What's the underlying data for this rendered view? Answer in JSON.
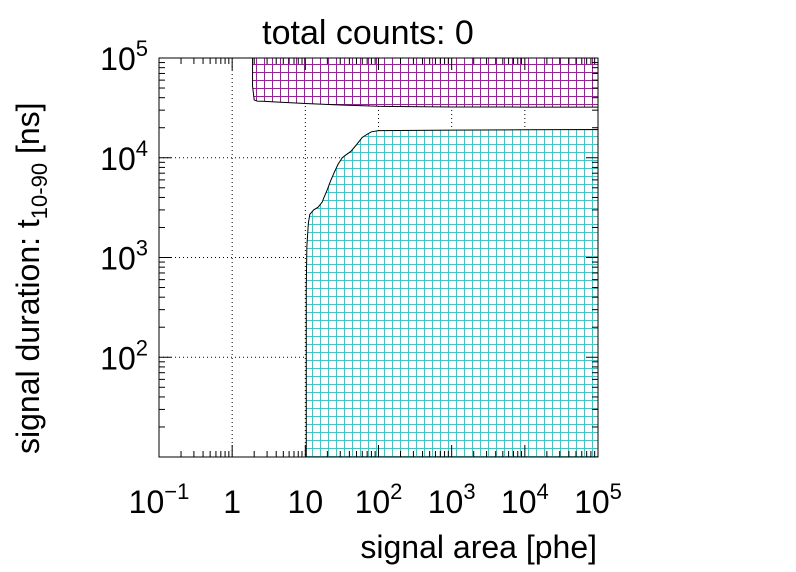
{
  "chart_data": {
    "type": "area",
    "title": "total counts: 0",
    "xlabel": "signal area [phe]",
    "ylabel": {
      "prefix": "signal duration: t",
      "subscript": "10-90",
      "suffix": " [ns]"
    },
    "x_scale": "log",
    "y_scale": "log",
    "xlim": [
      0.1,
      100000
    ],
    "ylim": [
      10,
      100000
    ],
    "grid": true,
    "x_ticks": [
      {
        "value": 0.1,
        "base": "10",
        "exp": "−1"
      },
      {
        "value": 1,
        "base": "1",
        "exp": ""
      },
      {
        "value": 10,
        "base": "10",
        "exp": ""
      },
      {
        "value": 100,
        "base": "10",
        "exp": "2"
      },
      {
        "value": 1000,
        "base": "10",
        "exp": "3"
      },
      {
        "value": 10000,
        "base": "10",
        "exp": "4"
      },
      {
        "value": 100000,
        "base": "10",
        "exp": "5"
      }
    ],
    "y_ticks": [
      {
        "value": 100,
        "base": "10",
        "exp": "2"
      },
      {
        "value": 1000,
        "base": "10",
        "exp": "3"
      },
      {
        "value": 10000,
        "base": "10",
        "exp": "4"
      },
      {
        "value": 100000,
        "base": "10",
        "exp": "5"
      }
    ],
    "regions": [
      {
        "color": "#c800c8",
        "boundary": [
          [
            1.9,
            100000
          ],
          [
            1.9,
            52000
          ],
          [
            2.0,
            38000
          ],
          [
            2.2,
            37000
          ],
          [
            2.6,
            36800
          ],
          [
            4,
            36200
          ],
          [
            10,
            35000
          ],
          [
            30,
            33800
          ],
          [
            100,
            32800
          ],
          [
            1000,
            32300
          ],
          [
            10000,
            32200
          ],
          [
            100000,
            32200
          ],
          [
            100000,
            100000
          ]
        ]
      },
      {
        "color": "#00e0e0",
        "boundary": [
          [
            10.3,
            10
          ],
          [
            10.3,
            500
          ],
          [
            10.5,
            1300
          ],
          [
            11,
            2200
          ],
          [
            11.5,
            2700
          ],
          [
            13,
            3000
          ],
          [
            15,
            3200
          ],
          [
            17,
            3600
          ],
          [
            18,
            4000
          ],
          [
            20,
            4800
          ],
          [
            22,
            5800
          ],
          [
            25,
            7200
          ],
          [
            28,
            8600
          ],
          [
            32,
            10000
          ],
          [
            36,
            10700
          ],
          [
            42,
            11600
          ],
          [
            50,
            13500
          ],
          [
            60,
            16000
          ],
          [
            70,
            17200
          ],
          [
            80,
            18200
          ],
          [
            100,
            18700
          ],
          [
            1000,
            18900
          ],
          [
            10000,
            19100
          ],
          [
            100000,
            19200
          ],
          [
            100000,
            10
          ]
        ]
      }
    ]
  }
}
